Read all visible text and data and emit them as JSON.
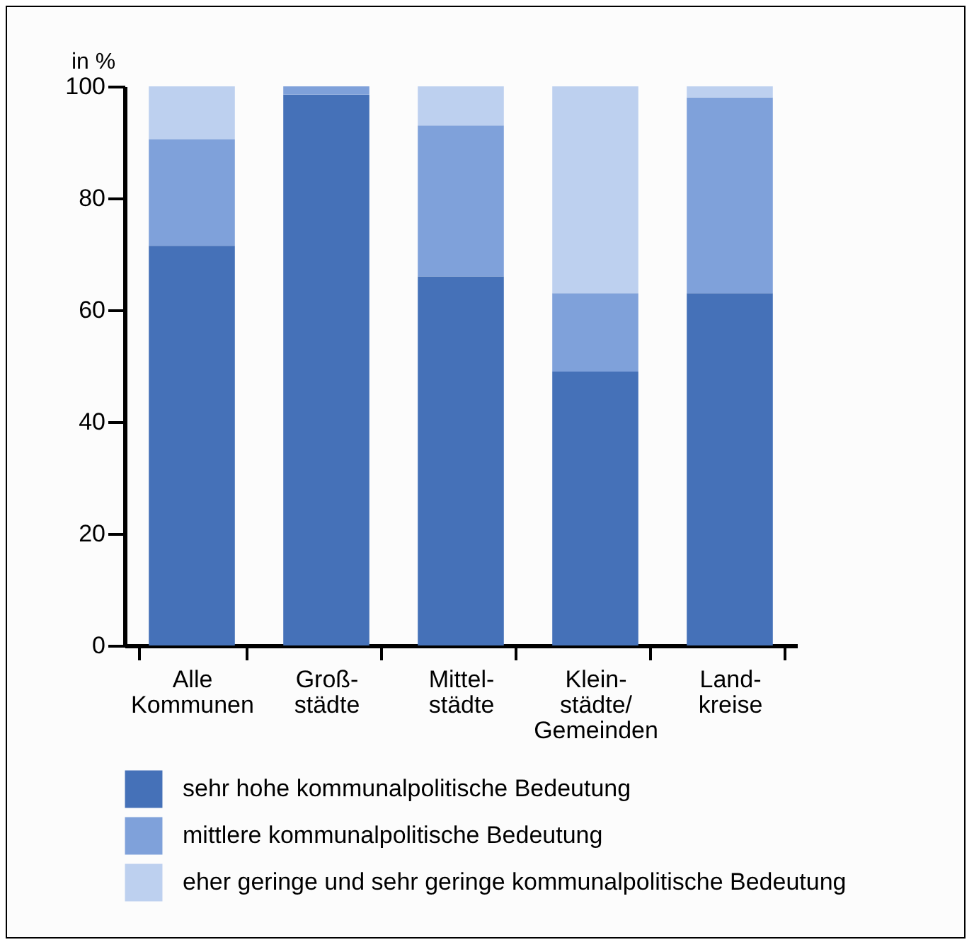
{
  "chart_data": {
    "type": "bar",
    "ylabel": "in %",
    "stacked": true,
    "legend": "bottom",
    "grid": false,
    "categories": [
      "Alle\nKommunen",
      "Groß-\nstädte",
      "Mittel-\nstädte",
      "Klein-\nstädte/\nGemeinden",
      "Land-\nkreise"
    ],
    "ylim": [
      0,
      100
    ],
    "yticks": [
      0,
      20,
      40,
      60,
      80,
      100
    ],
    "series": [
      {
        "name": "sehr hohe kommunalpolitische Bedeutung",
        "color": "#4571b8",
        "values": [
          71.5,
          98.5,
          66,
          49,
          63
        ]
      },
      {
        "name": "mittlere kommunalpolitische Bedeutung",
        "color": "#7fa1da",
        "values": [
          19,
          1.5,
          27,
          14,
          35
        ]
      },
      {
        "name": "eher geringe und sehr geringe kommunalpolitische Bedeutung",
        "color": "#bdd0ef",
        "values": [
          9.5,
          0,
          7,
          37,
          2
        ]
      }
    ]
  }
}
